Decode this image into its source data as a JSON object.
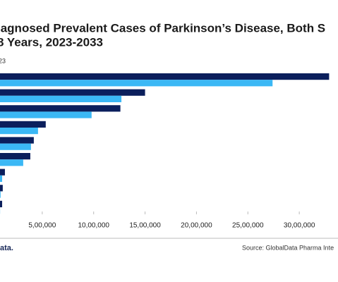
{
  "chart_data": {
    "type": "hbar",
    "title": "iagnosed Prevalent Cases of Parkinson’s Disease, Both S",
    "subtitle": "8 Years, 2023-2033",
    "legend_text": "23",
    "categories": [
      null,
      null,
      null,
      null,
      null,
      null,
      null,
      null,
      null
    ],
    "series": [
      {
        "color": "#0b1f5c",
        "values": [
          3290000,
          1500000,
          1260000,
          534000,
          418000,
          384000,
          137000,
          116000,
          110000
        ]
      },
      {
        "name": "23",
        "color": "#3bb8f5",
        "values": [
          2740000,
          1270000,
          980000,
          459000,
          390000,
          315000,
          110000,
          95000,
          90000
        ]
      }
    ],
    "xlim": [
      0,
      3500000
    ],
    "xticks": [
      {
        "value": 500000,
        "label": "5,00,000"
      },
      {
        "value": 1000000,
        "label": "10,00,000"
      },
      {
        "value": 1500000,
        "label": "15,00,000"
      },
      {
        "value": 2000000,
        "label": "20,00,000"
      },
      {
        "value": 2500000,
        "label": "25,00,000"
      },
      {
        "value": 3000000,
        "label": "30,00,000"
      }
    ],
    "source": "Source: GlobalData Pharma Inte",
    "logo": "ata."
  }
}
